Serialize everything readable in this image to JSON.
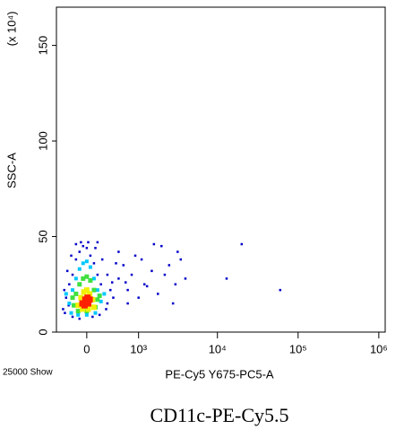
{
  "chart_data": {
    "type": "scatter",
    "y_multiplier": "(x 10⁴)",
    "ylabel": "SSC-A",
    "xlabel": "PE-Cy5 Y675-PC5-A",
    "event_count": "25000 Show",
    "caption": "CD11c-PE-Cy5.5",
    "x_scale": "biexponential",
    "xlim": [
      -470,
      1200000
    ],
    "ylim": [
      0,
      170
    ],
    "xticks": [
      0,
      {
        "value": 1000,
        "label": "10³"
      },
      {
        "value": 10000,
        "label": "10⁴"
      },
      {
        "value": 100000,
        "label": "10⁵"
      },
      {
        "value": 1000000,
        "label": "10⁶"
      }
    ],
    "yticks": [
      0,
      50,
      100,
      150
    ],
    "series": [
      {
        "color": "#0000c8",
        "x": [
          -350,
          -300,
          -250,
          -200,
          -150,
          -100,
          -50,
          0,
          50,
          100,
          150,
          200,
          250,
          300,
          -320,
          -280,
          -220,
          -150,
          -80,
          20,
          120,
          220,
          300,
          350,
          400,
          500,
          600,
          700,
          800,
          900,
          1000,
          1200,
          1500,
          1800,
          2000,
          2500,
          3000,
          3500,
          4000,
          -200,
          -100,
          80,
          180,
          280,
          380,
          500,
          700,
          1100,
          1600,
          2200,
          2800,
          -330,
          -260,
          150,
          450,
          650,
          1300,
          3200,
          13000,
          20000,
          60000
        ],
        "values": [
          12,
          18,
          25,
          30,
          38,
          42,
          45,
          44,
          40,
          36,
          30,
          25,
          20,
          15,
          10,
          32,
          40,
          46,
          47,
          47,
          44,
          38,
          30,
          22,
          18,
          28,
          35,
          22,
          30,
          40,
          18,
          25,
          32,
          20,
          45,
          35,
          25,
          38,
          28,
          8,
          7,
          8,
          9,
          12,
          26,
          42,
          15,
          38,
          46,
          30,
          15,
          22,
          14,
          47,
          36,
          26,
          24,
          42,
          28,
          46,
          22
        ]
      },
      {
        "color": "#00c8ff",
        "x": [
          -250,
          -200,
          -150,
          -100,
          -50,
          0,
          50,
          100,
          150,
          200,
          -220,
          -120,
          0,
          120,
          -300,
          250
        ],
        "values": [
          15,
          22,
          28,
          33,
          36,
          37,
          34,
          28,
          22,
          16,
          10,
          9,
          9,
          10,
          20,
          20
        ]
      },
      {
        "color": "#40e040",
        "x": [
          -180,
          -150,
          -100,
          -50,
          0,
          50,
          100,
          150,
          -120,
          0,
          120,
          -200,
          180
        ],
        "values": [
          14,
          20,
          25,
          28,
          29,
          27,
          22,
          17,
          11,
          11,
          13,
          18,
          19
        ]
      },
      {
        "color": "#f0f000",
        "x": [
          -120,
          -80,
          -40,
          0,
          40,
          80,
          100,
          -60,
          20
        ],
        "values": [
          14,
          18,
          21,
          22,
          20,
          17,
          13,
          12,
          12
        ]
      },
      {
        "color": "#ff2000",
        "x": [
          -60,
          -20,
          0,
          20,
          40,
          -30,
          10
        ],
        "values": [
          15,
          17,
          16,
          15,
          17,
          14,
          18
        ]
      }
    ]
  }
}
